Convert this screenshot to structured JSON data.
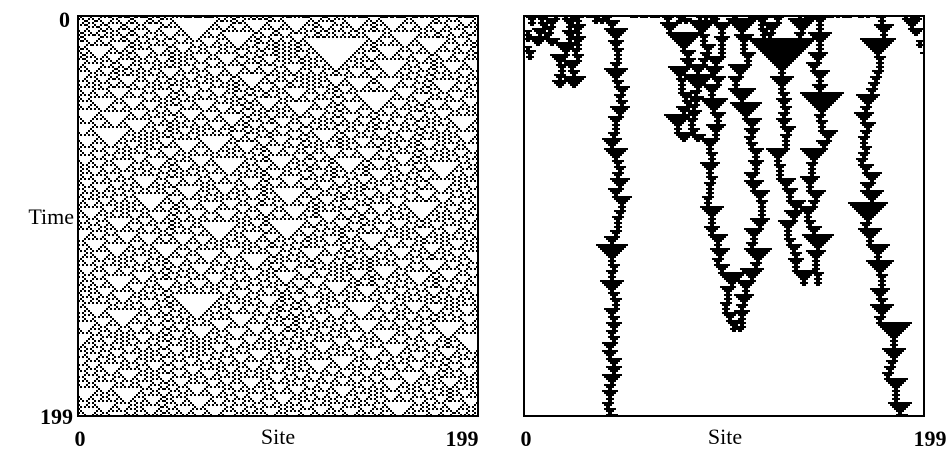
{
  "left_panel": {
    "y_axis": {
      "top": "0",
      "bottom": "199",
      "label": "Time"
    },
    "x_axis": {
      "start": "0",
      "label": "Site",
      "end": "199"
    }
  },
  "right_panel": {
    "x_axis": {
      "start": "0",
      "label": "Site",
      "end": "199"
    }
  }
}
